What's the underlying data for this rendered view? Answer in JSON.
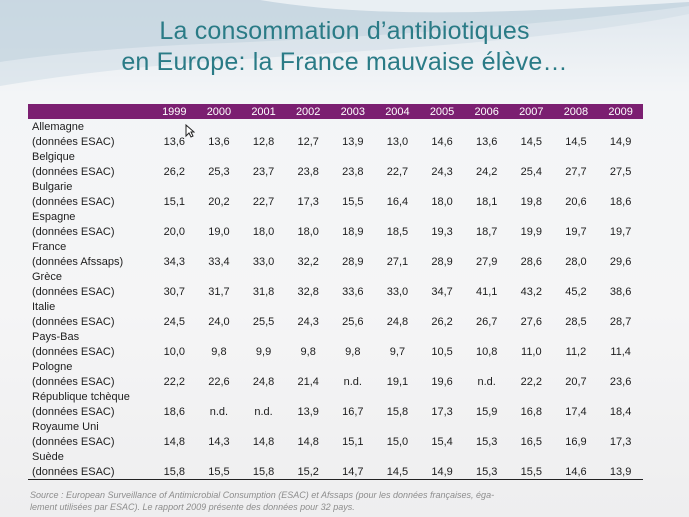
{
  "title": {
    "line1": "La consommation d’antibiotiques",
    "line2": "en Europe: la France mauvaise élève…"
  },
  "table": {
    "years": [
      "1999",
      "2000",
      "2001",
      "2002",
      "2003",
      "2004",
      "2005",
      "2006",
      "2007",
      "2008",
      "2009"
    ],
    "rows": [
      {
        "country": "Allemagne",
        "source": "(données ESAC)",
        "values": [
          "13,6",
          "13,6",
          "12,8",
          "12,7",
          "13,9",
          "13,0",
          "14,6",
          "13,6",
          "14,5",
          "14,5",
          "14,9"
        ]
      },
      {
        "country": "Belgique",
        "source": "(données ESAC)",
        "values": [
          "26,2",
          "25,3",
          "23,7",
          "23,8",
          "23,8",
          "22,7",
          "24,3",
          "24,2",
          "25,4",
          "27,7",
          "27,5"
        ]
      },
      {
        "country": "Bulgarie",
        "source": "(données ESAC)",
        "values": [
          "15,1",
          "20,2",
          "22,7",
          "17,3",
          "15,5",
          "16,4",
          "18,0",
          "18,1",
          "19,8",
          "20,6",
          "18,6"
        ]
      },
      {
        "country": "Espagne",
        "source": "(données ESAC)",
        "values": [
          "20,0",
          "19,0",
          "18,0",
          "18,0",
          "18,9",
          "18,5",
          "19,3",
          "18,7",
          "19,9",
          "19,7",
          "19,7"
        ]
      },
      {
        "country": "France",
        "source": "(données Afssaps)",
        "values": [
          "34,3",
          "33,4",
          "33,0",
          "32,2",
          "28,9",
          "27,1",
          "28,9",
          "27,9",
          "28,6",
          "28,0",
          "29,6"
        ]
      },
      {
        "country": "Grèce",
        "source": "(données ESAC)",
        "values": [
          "30,7",
          "31,7",
          "31,8",
          "32,8",
          "33,6",
          "33,0",
          "34,7",
          "41,1",
          "43,2",
          "45,2",
          "38,6"
        ]
      },
      {
        "country": "Italie",
        "source": "(données ESAC)",
        "values": [
          "24,5",
          "24,0",
          "25,5",
          "24,3",
          "25,6",
          "24,8",
          "26,2",
          "26,7",
          "27,6",
          "28,5",
          "28,7"
        ]
      },
      {
        "country": "Pays-Bas",
        "source": "(données ESAC)",
        "values": [
          "10,0",
          "9,8",
          "9,9",
          "9,8",
          "9,8",
          "9,7",
          "10,5",
          "10,8",
          "11,0",
          "11,2",
          "11,4"
        ]
      },
      {
        "country": "Pologne",
        "source": "(données ESAC)",
        "values": [
          "22,2",
          "22,6",
          "24,8",
          "21,4",
          "n.d.",
          "19,1",
          "19,6",
          "n.d.",
          "22,2",
          "20,7",
          "23,6"
        ]
      },
      {
        "country": "République tchèque",
        "source": "(données ESAC)",
        "values": [
          "18,6",
          "n.d.",
          "n.d.",
          "13,9",
          "16,7",
          "15,8",
          "17,3",
          "15,9",
          "16,8",
          "17,4",
          "18,4"
        ]
      },
      {
        "country": "Royaume Uni",
        "source": "(données ESAC)",
        "values": [
          "14,8",
          "14,3",
          "14,8",
          "14,8",
          "15,1",
          "15,0",
          "15,4",
          "15,3",
          "16,5",
          "16,9",
          "17,3"
        ]
      },
      {
        "country": "Suède",
        "source": "(données ESAC)",
        "values": [
          "15,8",
          "15,5",
          "15,8",
          "15,2",
          "14,7",
          "14,5",
          "14,9",
          "15,3",
          "15,5",
          "14,6",
          "13,9"
        ]
      }
    ]
  },
  "footnote": {
    "line1": "Source : European Surveillance of Antimicrobial Consumption (ESAC) et Afssaps (pour les données françaises, éga-",
    "line2": "lement utilisées par ESAC). Le rapport 2009 présente des données pour 32 pays."
  },
  "colors": {
    "title": "#2a7b86",
    "header_bg": "#7b1f71",
    "header_text": "#ffffff"
  }
}
